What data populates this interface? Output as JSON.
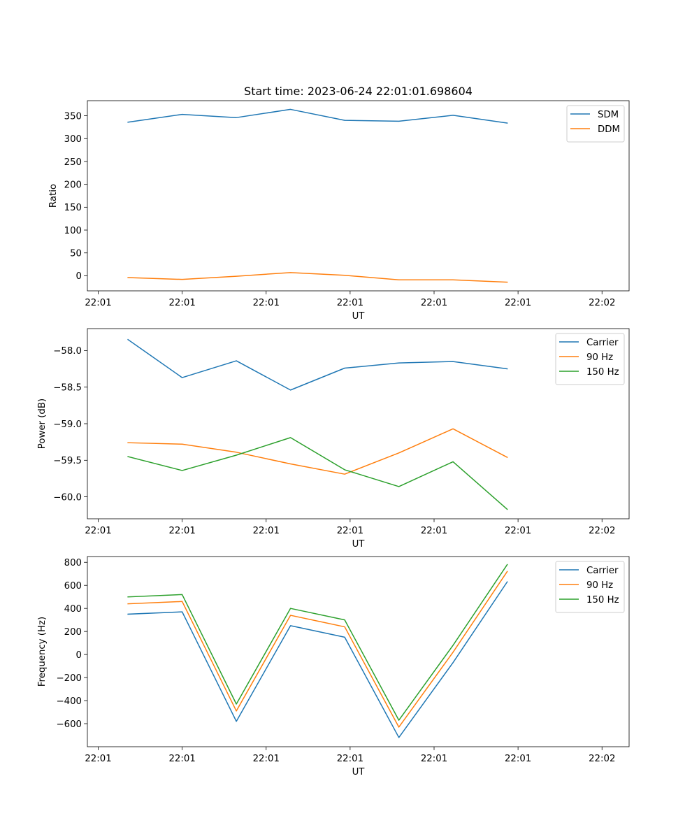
{
  "figure": {
    "title": "Start time: 2023-06-24 22:01:01.698604"
  },
  "chart_data": [
    {
      "type": "line",
      "title": "Start time: 2023-06-24 22:01:01.698604",
      "xlabel": "UT",
      "ylabel": "Ratio",
      "x_tick_labels": [
        "22:01",
        "22:01",
        "22:01",
        "22:01",
        "22:01",
        "22:01",
        "22:02"
      ],
      "y_ticks": [
        0,
        50,
        100,
        150,
        200,
        250,
        300,
        350
      ],
      "ylim": [
        -33,
        383
      ],
      "x_index_range": [
        -0.75,
        9.25
      ],
      "grid": false,
      "legend_position": "top-right",
      "series": [
        {
          "name": "SDM",
          "color": "#1f77b4",
          "values": [
            336,
            353,
            346,
            364,
            340,
            338,
            351,
            334
          ]
        },
        {
          "name": "DDM",
          "color": "#ff7f0e",
          "values": [
            -4,
            -8,
            -1,
            7,
            1,
            -9,
            -9,
            -14
          ]
        }
      ]
    },
    {
      "type": "line",
      "xlabel": "UT",
      "ylabel": "Power (dB)",
      "x_tick_labels": [
        "22:01",
        "22:01",
        "22:01",
        "22:01",
        "22:01",
        "22:01",
        "22:02"
      ],
      "y_ticks": [
        -60.0,
        -59.5,
        -59.0,
        -58.5,
        -58.0
      ],
      "y_tick_labels": [
        "−60.0",
        "−59.5",
        "−59.0",
        "−58.5",
        "−58.0"
      ],
      "ylim": [
        -60.3,
        -57.7
      ],
      "x_index_range": [
        -0.75,
        9.25
      ],
      "grid": false,
      "legend_position": "top-right",
      "series": [
        {
          "name": "Carrier",
          "color": "#1f77b4",
          "values": [
            -57.85,
            -58.37,
            -58.14,
            -58.54,
            -58.24,
            -58.17,
            -58.15,
            -58.25
          ]
        },
        {
          "name": "90 Hz",
          "color": "#ff7f0e",
          "values": [
            -59.26,
            -59.28,
            -59.39,
            -59.55,
            -59.69,
            -59.4,
            -59.07,
            -59.46
          ]
        },
        {
          "name": "150 Hz",
          "color": "#2ca02c",
          "values": [
            -59.45,
            -59.64,
            -59.43,
            -59.19,
            -59.63,
            -59.86,
            -59.52,
            -60.17
          ]
        }
      ]
    },
    {
      "type": "line",
      "xlabel": "UT",
      "ylabel": "Frequency (Hz)",
      "x_tick_labels": [
        "22:01",
        "22:01",
        "22:01",
        "22:01",
        "22:01",
        "22:01",
        "22:02"
      ],
      "y_ticks": [
        -600,
        -400,
        -200,
        0,
        200,
        400,
        600,
        800
      ],
      "y_tick_labels": [
        "−600",
        "−400",
        "−200",
        "0",
        "200",
        "400",
        "600",
        "800"
      ],
      "ylim": [
        -800,
        850
      ],
      "x_index_range": [
        -0.75,
        9.25
      ],
      "grid": false,
      "legend_position": "top-right",
      "series": [
        {
          "name": "Carrier",
          "color": "#1f77b4",
          "values": [
            350,
            370,
            -580,
            250,
            150,
            -720,
            -70,
            630
          ]
        },
        {
          "name": "90 Hz",
          "color": "#ff7f0e",
          "values": [
            440,
            460,
            -490,
            340,
            240,
            -630,
            20,
            720
          ]
        },
        {
          "name": "150 Hz",
          "color": "#2ca02c",
          "values": [
            500,
            520,
            -430,
            400,
            300,
            -570,
            80,
            780
          ]
        }
      ]
    }
  ]
}
